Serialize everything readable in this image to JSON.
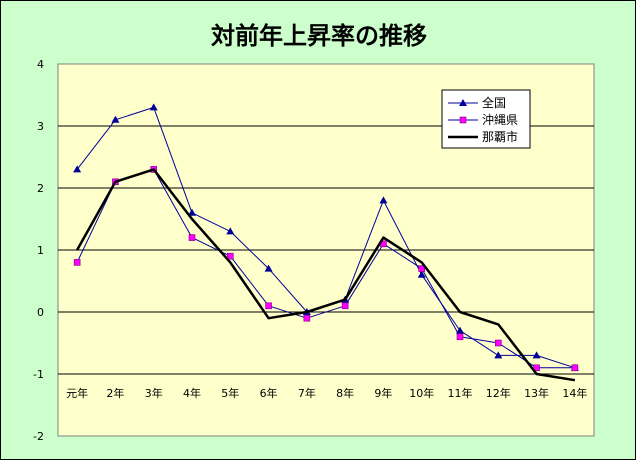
{
  "chart_data": {
    "type": "line",
    "title": "対前年上昇率の推移",
    "xlabel": "",
    "ylabel": "",
    "categories": [
      "元年",
      "2年",
      "3年",
      "4年",
      "5年",
      "6年",
      "7年",
      "8年",
      "9年",
      "10年",
      "11年",
      "12年",
      "13年",
      "14年"
    ],
    "ylim": [
      -2,
      4
    ],
    "yticks": [
      "-2",
      "-1",
      "0",
      "1",
      "2",
      "3",
      "4"
    ],
    "grid": true,
    "legend_position": "top-right",
    "plot_background": "#ffffcc",
    "chart_background": "#ccffcc",
    "series": [
      {
        "name": "全国",
        "color": "#000099",
        "marker": "triangle",
        "values": [
          2.3,
          3.1,
          3.3,
          1.6,
          1.3,
          0.7,
          0.0,
          0.2,
          1.8,
          0.6,
          -0.3,
          -0.7,
          -0.7,
          -0.9
        ]
      },
      {
        "name": "沖縄県",
        "color": "#000099",
        "marker": "square",
        "marker_color": "#ff00ff",
        "values": [
          0.8,
          2.1,
          2.3,
          1.2,
          0.9,
          0.1,
          -0.1,
          0.1,
          1.1,
          0.7,
          -0.4,
          -0.5,
          -0.9,
          -0.9
        ]
      },
      {
        "name": "那覇市",
        "color": "#000000",
        "marker": "none",
        "values": [
          1.0,
          2.1,
          2.3,
          1.5,
          0.8,
          -0.1,
          0.0,
          0.2,
          1.2,
          0.8,
          0.0,
          -0.2,
          -1.0,
          -1.1
        ]
      }
    ]
  }
}
